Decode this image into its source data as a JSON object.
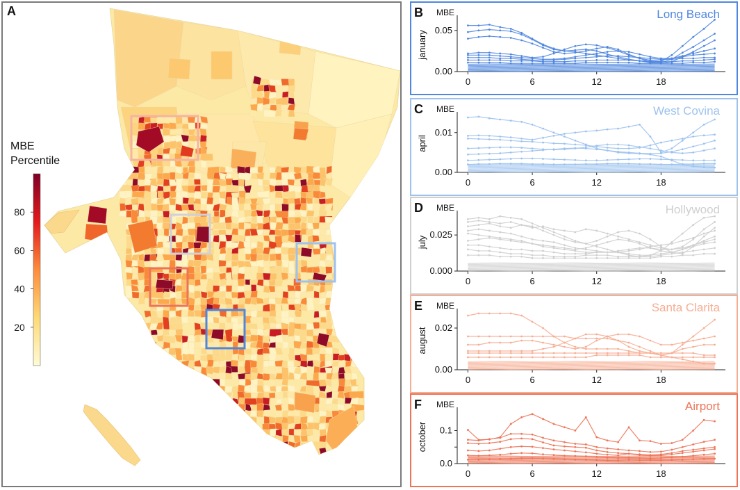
{
  "map": {
    "panel_label": "A",
    "colorbar": {
      "title_line1": "MBE",
      "title_line2": "Percentile",
      "ticks": [
        "80",
        "60",
        "40",
        "20"
      ],
      "tick_values": [
        80,
        60,
        40,
        20
      ],
      "range": [
        0,
        100
      ]
    },
    "boxes": [
      {
        "name": "santa-clarita-box",
        "color": "#f4b4a2"
      },
      {
        "name": "hollywood-box",
        "color": "#d0d0d8"
      },
      {
        "name": "west-covina-box",
        "color": "#9dc2ee"
      },
      {
        "name": "airport-box",
        "color": "#ec7458"
      },
      {
        "name": "long-beach-box",
        "color": "#4f86df"
      }
    ]
  },
  "chart_data": [
    {
      "type": "line",
      "panel_label": "B",
      "region": "Long Beach",
      "color": "#4f86df",
      "ylabel": "january",
      "ytitle": "MBE",
      "ylim": [
        0,
        0.065
      ],
      "yticks": [
        0.0,
        0.05
      ],
      "ytick_labels": [
        "0.00",
        "0.05"
      ],
      "xticks": [
        0,
        6,
        12,
        18
      ],
      "xlim": [
        -1,
        24
      ],
      "series": [
        [
          0.056,
          0.056,
          0.057,
          0.054,
          0.052,
          0.047,
          0.04,
          0.033,
          0.028,
          0.025,
          0.024,
          0.022,
          0.02,
          0.018,
          0.016,
          0.014,
          0.013,
          0.012,
          0.012,
          0.02,
          0.031,
          0.042,
          0.052,
          0.063
        ],
        [
          0.048,
          0.05,
          0.051,
          0.05,
          0.049,
          0.045,
          0.039,
          0.032,
          0.027,
          0.025,
          0.026,
          0.027,
          0.025,
          0.021,
          0.018,
          0.015,
          0.013,
          0.011,
          0.011,
          0.015,
          0.023,
          0.03,
          0.038,
          0.046
        ],
        [
          0.04,
          0.042,
          0.043,
          0.042,
          0.041,
          0.038,
          0.034,
          0.029,
          0.024,
          0.022,
          0.023,
          0.025,
          0.028,
          0.03,
          0.027,
          0.021,
          0.016,
          0.012,
          0.01,
          0.012,
          0.018,
          0.024,
          0.031,
          0.038
        ],
        [
          0.022,
          0.023,
          0.023,
          0.022,
          0.021,
          0.019,
          0.017,
          0.018,
          0.022,
          0.027,
          0.031,
          0.033,
          0.032,
          0.029,
          0.025,
          0.02,
          0.016,
          0.014,
          0.014,
          0.016,
          0.019,
          0.022,
          0.025,
          0.028
        ],
        [
          0.02,
          0.02,
          0.02,
          0.019,
          0.018,
          0.017,
          0.016,
          0.015,
          0.015,
          0.016,
          0.018,
          0.02,
          0.022,
          0.024,
          0.025,
          0.024,
          0.021,
          0.018,
          0.016,
          0.016,
          0.018,
          0.02,
          0.021,
          0.022
        ],
        [
          0.017,
          0.017,
          0.017,
          0.016,
          0.016,
          0.015,
          0.014,
          0.014,
          0.014,
          0.015,
          0.016,
          0.017,
          0.018,
          0.019,
          0.019,
          0.018,
          0.017,
          0.016,
          0.015,
          0.015,
          0.016,
          0.016,
          0.017,
          0.017
        ],
        [
          0.014,
          0.014,
          0.014,
          0.014,
          0.013,
          0.013,
          0.013,
          0.012,
          0.012,
          0.012,
          0.013,
          0.013,
          0.014,
          0.014,
          0.014,
          0.014,
          0.013,
          0.013,
          0.012,
          0.012,
          0.013,
          0.013,
          0.014,
          0.015
        ],
        [
          0.011,
          0.011,
          0.011,
          0.011,
          0.01,
          0.01,
          0.01,
          0.01,
          0.01,
          0.01,
          0.01,
          0.011,
          0.011,
          0.011,
          0.011,
          0.011,
          0.01,
          0.01,
          0.01,
          0.01,
          0.01,
          0.011,
          0.011,
          0.012
        ]
      ]
    },
    {
      "type": "line",
      "panel_label": "C",
      "region": "West Covina",
      "color": "#9dc2ee",
      "ylabel": "april",
      "ytitle": "MBE",
      "ylim": [
        0,
        0.0145
      ],
      "yticks": [
        0.0,
        0.01
      ],
      "ytick_labels": [
        "0.00",
        "0.01"
      ],
      "xticks": [
        0,
        6,
        12,
        18
      ],
      "xlim": [
        -1,
        24
      ],
      "series": [
        [
          0.0138,
          0.014,
          0.0136,
          0.0133,
          0.013,
          0.0127,
          0.012,
          0.011,
          0.01,
          0.009,
          0.008,
          0.007,
          0.006,
          0.0055,
          0.005,
          0.0048,
          0.0047,
          0.0045,
          0.004,
          0.003,
          0.002,
          0.0015,
          0.0013,
          0.0012
        ],
        [
          0.0092,
          0.0093,
          0.0092,
          0.009,
          0.0088,
          0.0085,
          0.0082,
          0.0087,
          0.0092,
          0.0097,
          0.01,
          0.0103,
          0.0105,
          0.0108,
          0.011,
          0.0115,
          0.012,
          0.009,
          0.005,
          0.006,
          0.008,
          0.01,
          0.012,
          0.0133
        ],
        [
          0.0085,
          0.0084,
          0.0083,
          0.0082,
          0.008,
          0.0078,
          0.0077,
          0.0075,
          0.0073,
          0.0072,
          0.007,
          0.0068,
          0.0065,
          0.0062,
          0.006,
          0.006,
          0.0062,
          0.0068,
          0.0075,
          0.008,
          0.0085,
          0.009,
          0.0093,
          0.0095
        ],
        [
          0.006,
          0.0061,
          0.0062,
          0.0063,
          0.0063,
          0.0062,
          0.006,
          0.0058,
          0.0057,
          0.0058,
          0.006,
          0.0063,
          0.0067,
          0.007,
          0.007,
          0.0068,
          0.0064,
          0.006,
          0.0055,
          0.005,
          0.0048,
          0.005,
          0.0055,
          0.006
        ],
        [
          0.0045,
          0.0046,
          0.0047,
          0.0048,
          0.005,
          0.0052,
          0.0054,
          0.0056,
          0.0058,
          0.006,
          0.0061,
          0.006,
          0.0058,
          0.0055,
          0.0052,
          0.005,
          0.0048,
          0.0047,
          0.0048,
          0.0052,
          0.0058,
          0.0065,
          0.0072,
          0.008
        ],
        [
          0.003,
          0.0031,
          0.0032,
          0.0033,
          0.0034,
          0.0035,
          0.0035,
          0.0034,
          0.0033,
          0.0032,
          0.0031,
          0.003,
          0.003,
          0.0031,
          0.0032,
          0.0033,
          0.0034,
          0.0034,
          0.0033,
          0.0032,
          0.0031,
          0.003,
          0.003,
          0.003
        ],
        [
          0.002,
          0.0021,
          0.0021,
          0.0022,
          0.0022,
          0.0022,
          0.0021,
          0.0021,
          0.002,
          0.002,
          0.002,
          0.0021,
          0.0021,
          0.0022,
          0.0022,
          0.0022,
          0.0021,
          0.0021,
          0.002,
          0.002,
          0.0021,
          0.0021,
          0.0022,
          0.0022
        ]
      ]
    },
    {
      "type": "line",
      "panel_label": "D",
      "region": "Hollywood",
      "color": "#cfcfcf",
      "ylabel": "july",
      "ytitle": "MBE",
      "ylim": [
        0,
        0.04
      ],
      "yticks": [
        0.0,
        0.025
      ],
      "ytick_labels": [
        "0.000",
        "0.025"
      ],
      "xticks": [
        0,
        6,
        12,
        18
      ],
      "xlim": [
        -1,
        24
      ],
      "series": [
        [
          0.036,
          0.037,
          0.036,
          0.038,
          0.037,
          0.036,
          0.033,
          0.03,
          0.027,
          0.024,
          0.021,
          0.019,
          0.017,
          0.015,
          0.013,
          0.011,
          0.01,
          0.011,
          0.014,
          0.02,
          0.026,
          0.032,
          0.037,
          0.038
        ],
        [
          0.034,
          0.035,
          0.034,
          0.033,
          0.034,
          0.032,
          0.03,
          0.031,
          0.029,
          0.028,
          0.027,
          0.029,
          0.028,
          0.026,
          0.024,
          0.022,
          0.02,
          0.018,
          0.016,
          0.015,
          0.017,
          0.022,
          0.029,
          0.034
        ],
        [
          0.031,
          0.032,
          0.033,
          0.031,
          0.03,
          0.032,
          0.031,
          0.028,
          0.025,
          0.022,
          0.02,
          0.019,
          0.021,
          0.024,
          0.027,
          0.028,
          0.026,
          0.022,
          0.017,
          0.013,
          0.012,
          0.017,
          0.024,
          0.03
        ],
        [
          0.028,
          0.029,
          0.028,
          0.027,
          0.026,
          0.024,
          0.022,
          0.021,
          0.02,
          0.018,
          0.016,
          0.015,
          0.014,
          0.013,
          0.013,
          0.014,
          0.015,
          0.017,
          0.018,
          0.019,
          0.021,
          0.023,
          0.026,
          0.028
        ],
        [
          0.026,
          0.025,
          0.024,
          0.023,
          0.022,
          0.021,
          0.019,
          0.018,
          0.017,
          0.016,
          0.015,
          0.016,
          0.018,
          0.02,
          0.022,
          0.021,
          0.019,
          0.016,
          0.014,
          0.013,
          0.015,
          0.018,
          0.021,
          0.024
        ],
        [
          0.021,
          0.022,
          0.023,
          0.022,
          0.021,
          0.02,
          0.019,
          0.017,
          0.016,
          0.015,
          0.014,
          0.013,
          0.013,
          0.013,
          0.014,
          0.015,
          0.016,
          0.016,
          0.015,
          0.015,
          0.016,
          0.018,
          0.02,
          0.022
        ],
        [
          0.018,
          0.018,
          0.017,
          0.016,
          0.015,
          0.015,
          0.014,
          0.014,
          0.013,
          0.012,
          0.012,
          0.012,
          0.013,
          0.013,
          0.013,
          0.012,
          0.011,
          0.011,
          0.012,
          0.013,
          0.015,
          0.017,
          0.019,
          0.02
        ],
        [
          0.015,
          0.014,
          0.014,
          0.013,
          0.012,
          0.012,
          0.011,
          0.011,
          0.01,
          0.01,
          0.01,
          0.011,
          0.011,
          0.011,
          0.01,
          0.01,
          0.01,
          0.01,
          0.011,
          0.012,
          0.013,
          0.014,
          0.015,
          0.016
        ],
        [
          0.011,
          0.011,
          0.011,
          0.01,
          0.01,
          0.01,
          0.009,
          0.009,
          0.009,
          0.009,
          0.009,
          0.009,
          0.009,
          0.009,
          0.009,
          0.009,
          0.009,
          0.009,
          0.01,
          0.01,
          0.011,
          0.011,
          0.012,
          0.012
        ]
      ]
    },
    {
      "type": "line",
      "panel_label": "E",
      "region": "Santa Clarita",
      "color": "#f6ad92",
      "ylabel": "august",
      "ytitle": "MBE",
      "ylim": [
        0,
        0.028
      ],
      "yticks": [
        0.0,
        0.02
      ],
      "ytick_labels": [
        "0.00",
        "0.02"
      ],
      "xticks": [
        0,
        6,
        12,
        18
      ],
      "xlim": [
        -1,
        24
      ],
      "series": [
        [
          0.026,
          0.027,
          0.027,
          0.027,
          0.027,
          0.026,
          0.023,
          0.02,
          0.016,
          0.013,
          0.011,
          0.01,
          0.01,
          0.01,
          0.01,
          0.009,
          0.008,
          0.008,
          0.007,
          0.006,
          0.005,
          0.004,
          0.003,
          0.003
        ],
        [
          0.016,
          0.016,
          0.016,
          0.016,
          0.016,
          0.016,
          0.016,
          0.016,
          0.016,
          0.016,
          0.015,
          0.015,
          0.015,
          0.015,
          0.014,
          0.013,
          0.011,
          0.009,
          0.007,
          0.008,
          0.012,
          0.016,
          0.02,
          0.024
        ],
        [
          0.012,
          0.012,
          0.013,
          0.013,
          0.013,
          0.014,
          0.014,
          0.013,
          0.012,
          0.011,
          0.01,
          0.011,
          0.014,
          0.016,
          0.017,
          0.017,
          0.016,
          0.014,
          0.012,
          0.012,
          0.013,
          0.014,
          0.015,
          0.016
        ],
        [
          0.009,
          0.009,
          0.009,
          0.009,
          0.009,
          0.009,
          0.009,
          0.01,
          0.011,
          0.013,
          0.015,
          0.017,
          0.017,
          0.016,
          0.014,
          0.011,
          0.009,
          0.008,
          0.007,
          0.008,
          0.01,
          0.011,
          0.012,
          0.012
        ],
        [
          0.008,
          0.008,
          0.008,
          0.008,
          0.008,
          0.008,
          0.008,
          0.008,
          0.008,
          0.008,
          0.008,
          0.008,
          0.008,
          0.008,
          0.008,
          0.008,
          0.008,
          0.008,
          0.008,
          0.008,
          0.008,
          0.008,
          0.007,
          0.007
        ],
        [
          0.006,
          0.006,
          0.006,
          0.006,
          0.006,
          0.006,
          0.006,
          0.006,
          0.006,
          0.006,
          0.006,
          0.006,
          0.007,
          0.007,
          0.007,
          0.007,
          0.007,
          0.006,
          0.006,
          0.006,
          0.006,
          0.006,
          0.006,
          0.006
        ]
      ]
    },
    {
      "type": "line",
      "panel_label": "F",
      "region": "Airport",
      "color": "#ec7458",
      "ylabel": "october",
      "ytitle": "MBE",
      "ylim": [
        0,
        0.162
      ],
      "yticks": [
        0.0,
        0.05,
        0.1
      ],
      "ytick_labels": [
        "0.0",
        "0.1"
      ],
      "ytick_label_values": [
        0.0,
        0.1
      ],
      "xticks": [
        0,
        6,
        12,
        18
      ],
      "xlim": [
        -1,
        24
      ],
      "series": [
        [
          0.102,
          0.072,
          0.073,
          0.08,
          0.12,
          0.14,
          0.15,
          0.135,
          0.12,
          0.11,
          0.1,
          0.14,
          0.08,
          0.07,
          0.065,
          0.11,
          0.07,
          0.068,
          0.06,
          0.062,
          0.072,
          0.1,
          0.132,
          0.128
        ],
        [
          0.072,
          0.07,
          0.074,
          0.078,
          0.09,
          0.09,
          0.088,
          0.078,
          0.07,
          0.065,
          0.06,
          0.058,
          0.05,
          0.046,
          0.043,
          0.04,
          0.038,
          0.035,
          0.036,
          0.042,
          0.05,
          0.058,
          0.066,
          0.072
        ],
        [
          0.062,
          0.06,
          0.062,
          0.066,
          0.074,
          0.076,
          0.074,
          0.064,
          0.055,
          0.052,
          0.05,
          0.048,
          0.04,
          0.035,
          0.032,
          0.03,
          0.028,
          0.026,
          0.028,
          0.032,
          0.038,
          0.042,
          0.046,
          0.05
        ],
        [
          0.04,
          0.038,
          0.04,
          0.045,
          0.05,
          0.052,
          0.051,
          0.047,
          0.043,
          0.04,
          0.037,
          0.034,
          0.03,
          0.027,
          0.025,
          0.03,
          0.026,
          0.024,
          0.025,
          0.028,
          0.032,
          0.036,
          0.04,
          0.044
        ],
        [
          0.025,
          0.024,
          0.025,
          0.027,
          0.03,
          0.032,
          0.031,
          0.028,
          0.026,
          0.024,
          0.023,
          0.022,
          0.02,
          0.018,
          0.017,
          0.018,
          0.017,
          0.016,
          0.017,
          0.019,
          0.021,
          0.024,
          0.027,
          0.03
        ],
        [
          0.012,
          0.012,
          0.013,
          0.014,
          0.015,
          0.016,
          0.016,
          0.015,
          0.014,
          0.013,
          0.012,
          0.012,
          0.011,
          0.01,
          0.01,
          0.011,
          0.01,
          0.01,
          0.01,
          0.011,
          0.012,
          0.013,
          0.014,
          0.015
        ]
      ]
    }
  ]
}
